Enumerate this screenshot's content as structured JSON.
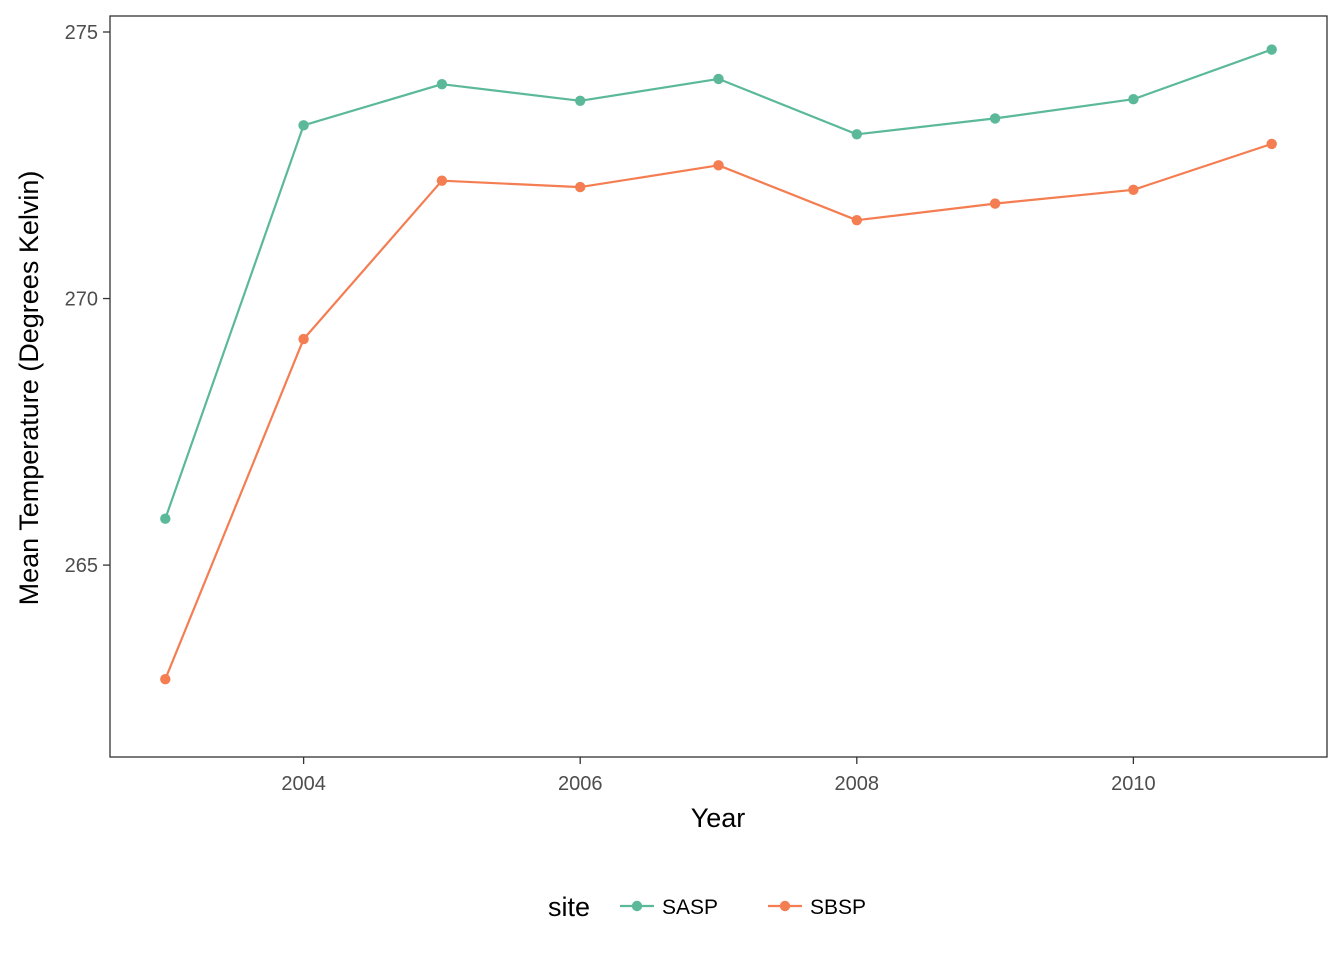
{
  "chart_data": {
    "type": "line",
    "title": "",
    "xlabel": "Year",
    "ylabel": "Mean Temperature (Degrees Kelvin)",
    "x": [
      2003,
      2004,
      2005,
      2006,
      2007,
      2008,
      2009,
      2010,
      2011
    ],
    "xticks": [
      2004,
      2006,
      2008,
      2010
    ],
    "yticks": [
      265,
      270,
      275
    ],
    "xlim": [
      2002.6,
      2011.4
    ],
    "ylim": [
      261.4,
      275.3
    ],
    "grid": false,
    "legend": {
      "title": "site",
      "position": "bottom"
    },
    "series": [
      {
        "name": "SASP",
        "color": "#5BB99A",
        "values": [
          265.87,
          273.25,
          274.02,
          273.71,
          274.12,
          273.08,
          273.38,
          273.74,
          274.67
        ]
      },
      {
        "name": "SBSP",
        "color": "#F47D52",
        "values": [
          262.86,
          269.24,
          272.21,
          272.09,
          272.5,
          271.47,
          271.78,
          272.04,
          272.9
        ]
      }
    ]
  }
}
